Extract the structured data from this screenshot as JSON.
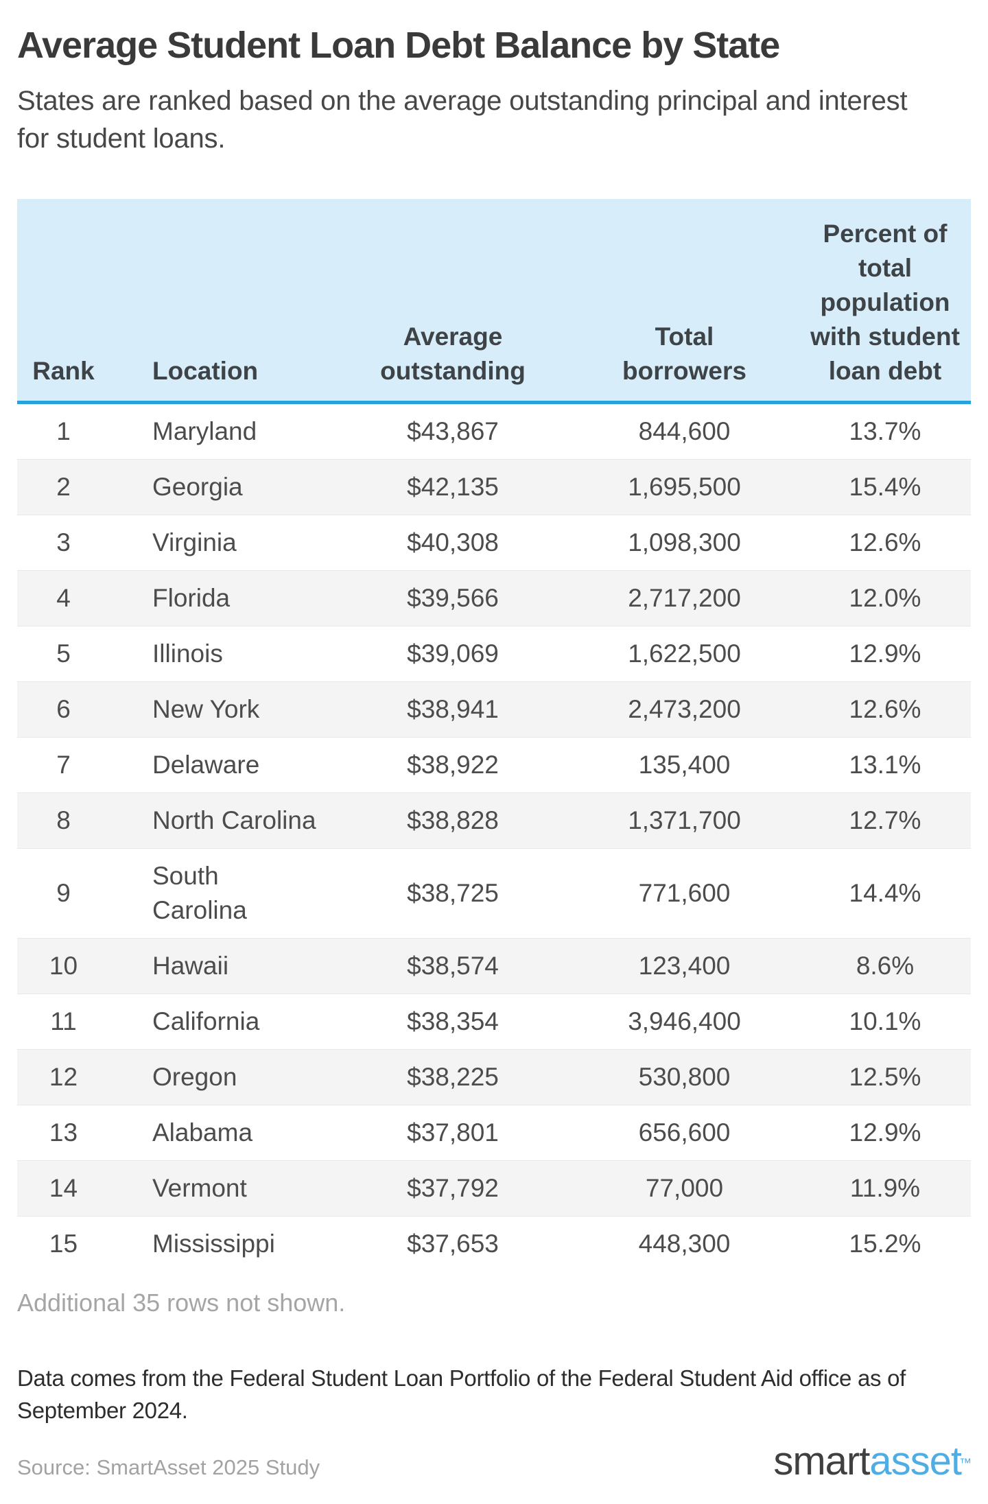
{
  "title": "Average Student Loan Debt Balance by State",
  "subtitle": "States are ranked based on the average outstanding principal and interest\nfor student loans.",
  "table": {
    "columns": [
      "Rank",
      "Location",
      "Average outstanding",
      "Total borrowers",
      "Percent of total population with student loan debt"
    ],
    "rows": [
      {
        "rank": "1",
        "location": "Maryland",
        "avg_outstanding": "$43,867",
        "total_borrowers": "844,600",
        "pct_population": "13.7%"
      },
      {
        "rank": "2",
        "location": "Georgia",
        "avg_outstanding": "$42,135",
        "total_borrowers": "1,695,500",
        "pct_population": "15.4%"
      },
      {
        "rank": "3",
        "location": "Virginia",
        "avg_outstanding": "$40,308",
        "total_borrowers": "1,098,300",
        "pct_population": "12.6%"
      },
      {
        "rank": "4",
        "location": "Florida",
        "avg_outstanding": "$39,566",
        "total_borrowers": "2,717,200",
        "pct_population": "12.0%"
      },
      {
        "rank": "5",
        "location": "Illinois",
        "avg_outstanding": "$39,069",
        "total_borrowers": "1,622,500",
        "pct_population": "12.9%"
      },
      {
        "rank": "6",
        "location": "New York",
        "avg_outstanding": "$38,941",
        "total_borrowers": "2,473,200",
        "pct_population": "12.6%"
      },
      {
        "rank": "7",
        "location": "Delaware",
        "avg_outstanding": "$38,922",
        "total_borrowers": "135,400",
        "pct_population": "13.1%"
      },
      {
        "rank": "8",
        "location": "North Carolina",
        "avg_outstanding": "$38,828",
        "total_borrowers": "1,371,700",
        "pct_population": "12.7%"
      },
      {
        "rank": "9",
        "location": "South Carolina",
        "avg_outstanding": "$38,725",
        "total_borrowers": "771,600",
        "pct_population": "14.4%"
      },
      {
        "rank": "10",
        "location": "Hawaii",
        "avg_outstanding": "$38,574",
        "total_borrowers": "123,400",
        "pct_population": "8.6%"
      },
      {
        "rank": "11",
        "location": "California",
        "avg_outstanding": "$38,354",
        "total_borrowers": "3,946,400",
        "pct_population": "10.1%"
      },
      {
        "rank": "12",
        "location": "Oregon",
        "avg_outstanding": "$38,225",
        "total_borrowers": "530,800",
        "pct_population": "12.5%"
      },
      {
        "rank": "13",
        "location": "Alabama",
        "avg_outstanding": "$37,801",
        "total_borrowers": "656,600",
        "pct_population": "12.9%"
      },
      {
        "rank": "14",
        "location": "Vermont",
        "avg_outstanding": "$37,792",
        "total_borrowers": "77,000",
        "pct_population": "11.9%"
      },
      {
        "rank": "15",
        "location": "Mississippi",
        "avg_outstanding": "$37,653",
        "total_borrowers": "448,300",
        "pct_population": "15.2%"
      }
    ]
  },
  "additional_note": "Additional 35 rows not shown.",
  "footnote": "Data comes from the Federal Student Loan Portfolio of the Federal Student Aid office as of\nSeptember 2024.",
  "source": "Source: SmartAsset 2025 Study",
  "logo": {
    "smart": "smart",
    "asset": "asset",
    "tm": "™"
  },
  "colors": {
    "header_bg": "#d7edf9",
    "header_underline": "#27a2dc",
    "alt_row_bg": "#f4f4f4",
    "row_border": "#e8e8e8",
    "title_text": "#3a3a3a",
    "cell_text": "#4c4c4c",
    "muted_text": "#a5a5a5",
    "logo_blue": "#4fade4"
  },
  "chart_data": {
    "type": "table",
    "title": "Average Student Loan Debt Balance by State",
    "subtitle": "States are ranked based on the average outstanding principal and interest for student loans.",
    "columns": [
      "Rank",
      "Location",
      "Average outstanding",
      "Total borrowers",
      "Percent of total population with student loan debt"
    ],
    "rows": [
      {
        "rank": 1,
        "location": "Maryland",
        "avg_outstanding_usd": 43867,
        "total_borrowers": 844600,
        "pct_population_with_debt": 13.7
      },
      {
        "rank": 2,
        "location": "Georgia",
        "avg_outstanding_usd": 42135,
        "total_borrowers": 1695500,
        "pct_population_with_debt": 15.4
      },
      {
        "rank": 3,
        "location": "Virginia",
        "avg_outstanding_usd": 40308,
        "total_borrowers": 1098300,
        "pct_population_with_debt": 12.6
      },
      {
        "rank": 4,
        "location": "Florida",
        "avg_outstanding_usd": 39566,
        "total_borrowers": 2717200,
        "pct_population_with_debt": 12.0
      },
      {
        "rank": 5,
        "location": "Illinois",
        "avg_outstanding_usd": 39069,
        "total_borrowers": 1622500,
        "pct_population_with_debt": 12.9
      },
      {
        "rank": 6,
        "location": "New York",
        "avg_outstanding_usd": 38941,
        "total_borrowers": 2473200,
        "pct_population_with_debt": 12.6
      },
      {
        "rank": 7,
        "location": "Delaware",
        "avg_outstanding_usd": 38922,
        "total_borrowers": 135400,
        "pct_population_with_debt": 13.1
      },
      {
        "rank": 8,
        "location": "North Carolina",
        "avg_outstanding_usd": 38828,
        "total_borrowers": 1371700,
        "pct_population_with_debt": 12.7
      },
      {
        "rank": 9,
        "location": "South Carolina",
        "avg_outstanding_usd": 38725,
        "total_borrowers": 771600,
        "pct_population_with_debt": 14.4
      },
      {
        "rank": 10,
        "location": "Hawaii",
        "avg_outstanding_usd": 38574,
        "total_borrowers": 123400,
        "pct_population_with_debt": 8.6
      },
      {
        "rank": 11,
        "location": "California",
        "avg_outstanding_usd": 38354,
        "total_borrowers": 3946400,
        "pct_population_with_debt": 10.1
      },
      {
        "rank": 12,
        "location": "Oregon",
        "avg_outstanding_usd": 38225,
        "total_borrowers": 530800,
        "pct_population_with_debt": 12.5
      },
      {
        "rank": 13,
        "location": "Alabama",
        "avg_outstanding_usd": 37801,
        "total_borrowers": 656600,
        "pct_population_with_debt": 12.9
      },
      {
        "rank": 14,
        "location": "Vermont",
        "avg_outstanding_usd": 37792,
        "total_borrowers": 77000,
        "pct_population_with_debt": 11.9
      },
      {
        "rank": 15,
        "location": "Mississippi",
        "avg_outstanding_usd": 37653,
        "total_borrowers": 448300,
        "pct_population_with_debt": 15.2
      }
    ],
    "notes": [
      "Additional 35 rows not shown.",
      "Data comes from the Federal Student Loan Portfolio of the Federal Student Aid office as of September 2024.",
      "Source: SmartAsset 2025 Study"
    ]
  }
}
